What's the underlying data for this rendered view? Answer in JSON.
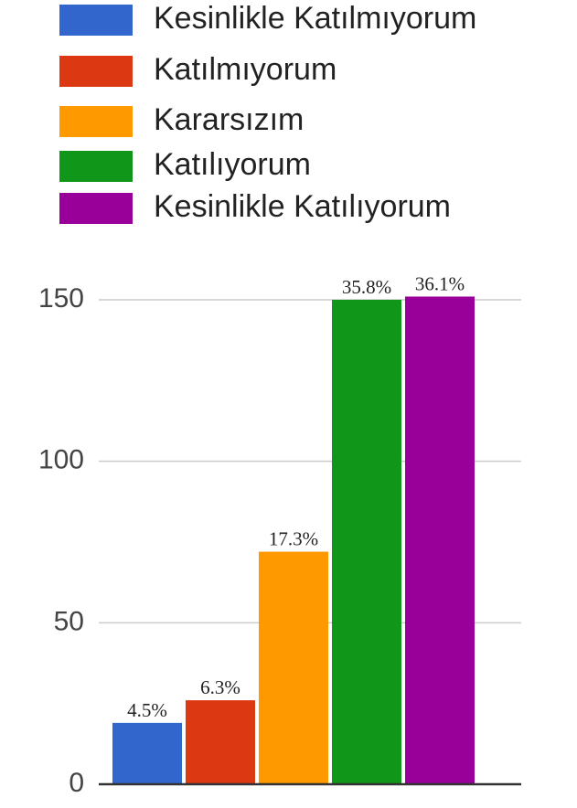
{
  "chart_data": {
    "type": "bar",
    "categories": [
      null
    ],
    "series": [
      {
        "name": "Kesinlikle Katılmıyorum",
        "color": "#3366cc",
        "values": [
          19
        ]
      },
      {
        "name": "Katılmıyorum",
        "color": "#dc3912",
        "values": [
          26
        ]
      },
      {
        "name": "Kararsızım",
        "color": "#ff9900",
        "values": [
          72
        ]
      },
      {
        "name": "Katılıyorum",
        "color": "#109618",
        "values": [
          150
        ]
      },
      {
        "name": "Kesinlikle Katılıyorum",
        "color": "#990099",
        "values": [
          151
        ]
      }
    ],
    "percent_labels": [
      "4.5%",
      "6.3%",
      "17.3%",
      "35.8%",
      "36.1%"
    ],
    "ylim": [
      0,
      150
    ],
    "yticks": [
      0,
      50,
      100,
      150
    ],
    "grid": true,
    "legend": "top"
  }
}
